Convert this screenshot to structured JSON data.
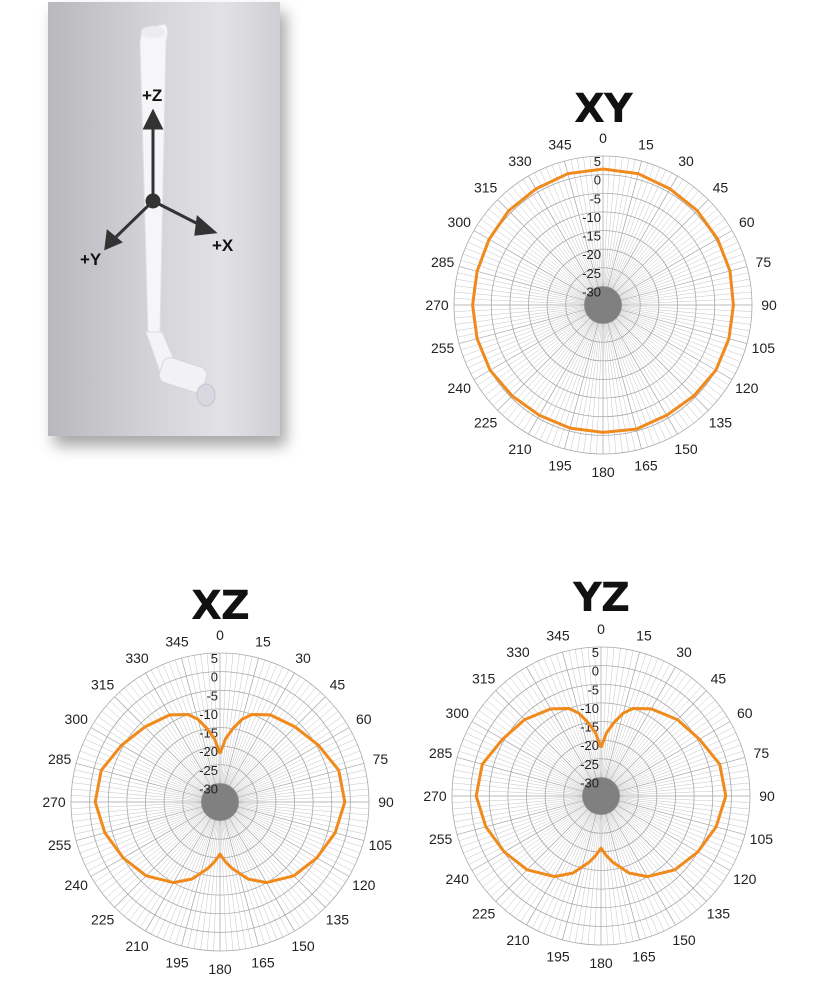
{
  "antenna_photo": {
    "axis_labels": {
      "z": "+Z",
      "x": "+X",
      "y": "+Y"
    },
    "colors": {
      "antenna": "#f6f6f8",
      "axis": "#333333"
    }
  },
  "chart_data": [
    {
      "type": "polar-line",
      "title": "XY",
      "angular_ticks": [
        "0",
        "15",
        "30",
        "45",
        "60",
        "75",
        "90",
        "105",
        "120",
        "135",
        "150",
        "165",
        "180",
        "195",
        "210",
        "225",
        "240",
        "255",
        "270",
        "285",
        "300",
        "315",
        "330",
        "345"
      ],
      "radial_ticks": [
        "5",
        "0",
        "-5",
        "-10",
        "-15",
        "-20",
        "-25",
        "-30"
      ],
      "rlim": [
        -35,
        5
      ],
      "grid": true,
      "line_color": "#f08a1d",
      "series": [
        {
          "theta": [
            0,
            15,
            30,
            45,
            60,
            75,
            90,
            105,
            120,
            135,
            150,
            165,
            180,
            195,
            210,
            225,
            240,
            255,
            270,
            285,
            300,
            315,
            330,
            345,
            360
          ],
          "r": [
            1.5,
            1.5,
            1,
            0.8,
            0.5,
            0.3,
            0,
            0,
            0,
            -0.5,
            -0.8,
            -0.5,
            -0.8,
            -0.8,
            -0.8,
            -0.5,
            0,
            0,
            0,
            0,
            0.3,
            0.8,
            1,
            1.5,
            1.5
          ]
        }
      ]
    },
    {
      "type": "polar-line",
      "title": "XZ",
      "angular_ticks": [
        "0",
        "15",
        "30",
        "45",
        "60",
        "75",
        "90",
        "105",
        "120",
        "135",
        "150",
        "165",
        "180",
        "195",
        "210",
        "225",
        "240",
        "255",
        "270",
        "285",
        "300",
        "315",
        "330",
        "345"
      ],
      "radial_ticks": [
        "5",
        "0",
        "-5",
        "-10",
        "-15",
        "-20",
        "-25",
        "-30"
      ],
      "rlim": [
        -35,
        5
      ],
      "grid": true,
      "line_color": "#f08a1d",
      "series": [
        {
          "theta": [
            0,
            5,
            10,
            15,
            20,
            30,
            45,
            60,
            75,
            90,
            105,
            120,
            135,
            150,
            160,
            170,
            175,
            180,
            185,
            190,
            200,
            210,
            225,
            240,
            255,
            270,
            285,
            300,
            315,
            330,
            340,
            345,
            350,
            355,
            360
          ],
          "r": [
            -22,
            -18,
            -15,
            -12,
            -10,
            -8,
            -6.5,
            -4.5,
            -2,
            -1.5,
            -3,
            -5,
            -7,
            -10,
            -13,
            -17,
            -19,
            -21,
            -19,
            -17,
            -13,
            -10,
            -7,
            -5,
            -3,
            -1.5,
            -2,
            -4.5,
            -6.5,
            -8,
            -10,
            -12,
            -15,
            -18,
            -22
          ]
        }
      ]
    },
    {
      "type": "polar-line",
      "title": "YZ",
      "angular_ticks": [
        "0",
        "15",
        "30",
        "45",
        "60",
        "75",
        "90",
        "105",
        "120",
        "135",
        "150",
        "165",
        "180",
        "195",
        "210",
        "225",
        "240",
        "255",
        "270",
        "285",
        "300",
        "315",
        "330",
        "345"
      ],
      "radial_ticks": [
        "5",
        "0",
        "-5",
        "-10",
        "-15",
        "-20",
        "-25",
        "-30"
      ],
      "rlim": [
        -35,
        5
      ],
      "grid": true,
      "line_color": "#f08a1d",
      "series": [
        {
          "theta": [
            0,
            5,
            10,
            15,
            20,
            30,
            45,
            60,
            75,
            90,
            105,
            120,
            135,
            150,
            160,
            170,
            175,
            180,
            185,
            190,
            200,
            210,
            225,
            240,
            255,
            270,
            285,
            300,
            315,
            330,
            340,
            345,
            350,
            355,
            360
          ],
          "r": [
            -22,
            -18,
            -15,
            -12,
            -10,
            -8,
            -6,
            -4.5,
            -2,
            -1.5,
            -3,
            -5,
            -7,
            -10,
            -13,
            -17,
            -19,
            -21,
            -19,
            -17,
            -13,
            -10,
            -7,
            -5,
            -3,
            -1.5,
            -2,
            -4.5,
            -6,
            -8,
            -10,
            -12,
            -15,
            -18,
            -22
          ]
        }
      ]
    }
  ]
}
